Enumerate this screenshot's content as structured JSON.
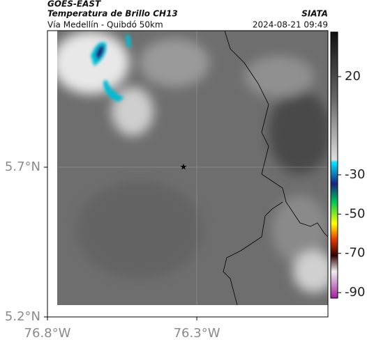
{
  "header": {
    "title": "GOES-EAST",
    "subtitle": "Temperatura de Brillo CH13",
    "route": "Vía Medellín - Quibdó 50km",
    "source": "SIATA",
    "timestamp": "2024-08-21 09:49"
  },
  "map": {
    "xlim": [
      -76.8,
      -75.861
    ],
    "ylim": [
      5.2,
      6.156
    ],
    "xticks": [
      {
        "value": -76.8,
        "label": "76.8°W"
      },
      {
        "value": -76.3,
        "label": "76.3°W"
      }
    ],
    "yticks": [
      {
        "value": 5.7,
        "label": "5.7°N"
      },
      {
        "value": 5.2,
        "label": "5.2°N"
      }
    ]
  },
  "colorbar": {
    "lim": [
      42.7,
      -92.8
    ],
    "ticks": [
      20,
      -30,
      -50,
      -70,
      -90
    ]
  }
}
